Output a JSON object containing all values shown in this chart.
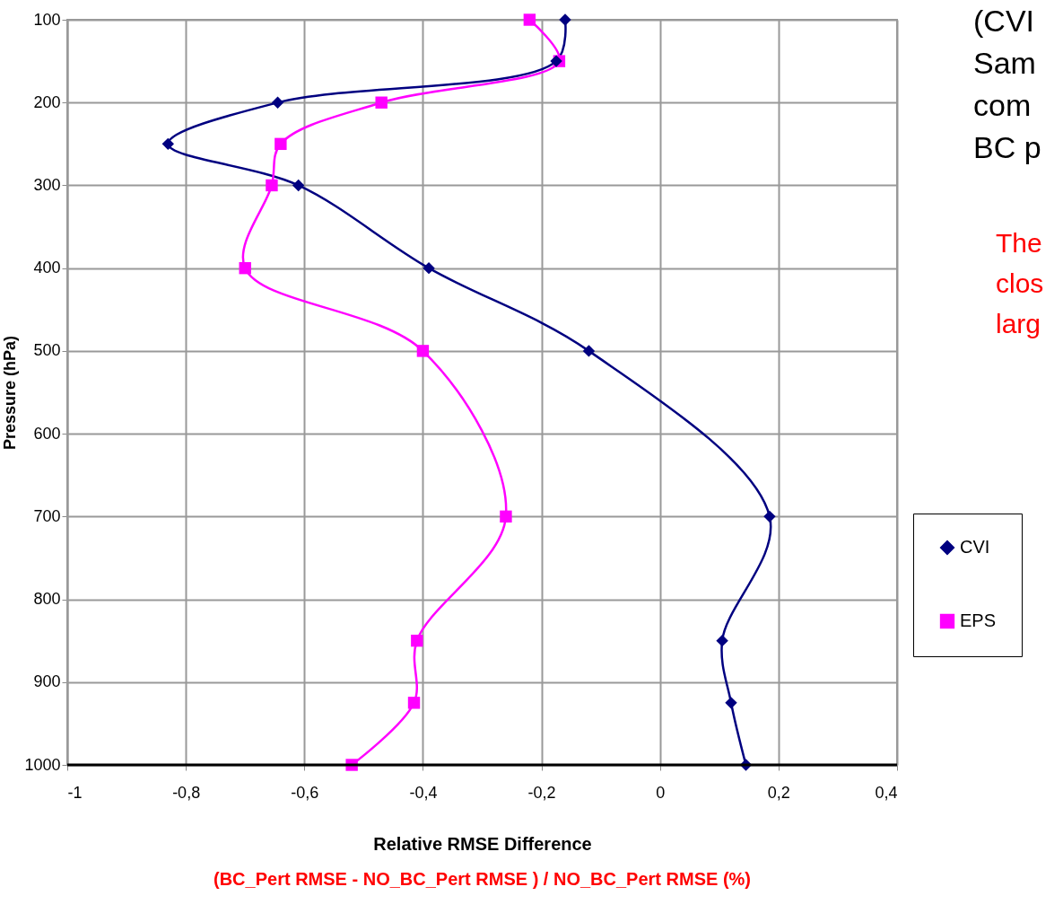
{
  "chart_data": {
    "type": "line",
    "orientation": "horizontal",
    "xlabel": "Relative RMSE  Difference",
    "ylabel": "Pressure (hPa)",
    "x": [
      100,
      150,
      200,
      250,
      300,
      400,
      500,
      700,
      850,
      925,
      1000
    ],
    "series": [
      {
        "name": "CVI",
        "color": "#000080",
        "marker": "diamond",
        "values": [
          -0.16,
          -0.175,
          -0.645,
          -0.83,
          -0.61,
          -0.39,
          -0.12,
          0.185,
          0.105,
          0.12,
          0.145
        ]
      },
      {
        "name": "EPS",
        "color": "#ff00ff",
        "marker": "square",
        "values": [
          -0.22,
          -0.17,
          -0.47,
          -0.64,
          -0.655,
          -0.7,
          -0.4,
          -0.26,
          -0.41,
          -0.415,
          -0.52
        ]
      }
    ],
    "xlim": [
      -1,
      0.4
    ],
    "xticks": [
      -1,
      {
        "value": -0.8,
        "label": "-0,8"
      },
      {
        "value": -0.6,
        "label": "-0,6"
      },
      {
        "value": -0.4,
        "label": "-0,4"
      },
      {
        "value": -0.2,
        "label": "-0,2"
      },
      0,
      {
        "value": 0.2,
        "label": "0,2"
      },
      {
        "value": 0.4,
        "label": "0,4"
      }
    ],
    "ylim": [
      1000,
      100
    ],
    "yticks": [
      100,
      200,
      300,
      400,
      500,
      600,
      700,
      800,
      900,
      1000
    ],
    "grid": true,
    "legend": "right",
    "line_style": "solid",
    "annotations": [
      "(BC_Pert RMSE - NO_BC_Pert RMSE ) / NO_BC_Pert RMSE    (%)",
      "(CVI",
      "Sam",
      "com",
      "BC p",
      "The",
      "clos",
      "larg"
    ]
  }
}
